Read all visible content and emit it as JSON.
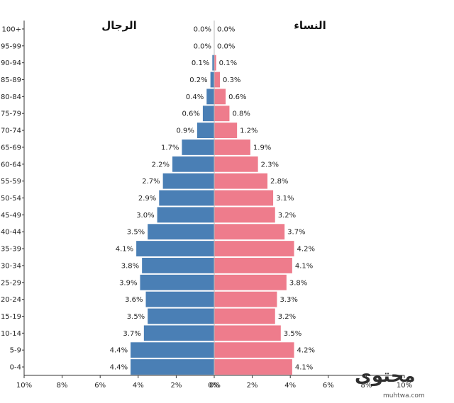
{
  "chart_data": {
    "type": "bar",
    "orientation": "horizontal",
    "layout": "population-pyramid",
    "title_left": "الرجال",
    "title_right": "النساء",
    "categories": [
      "100+",
      "95-99",
      "90-94",
      "85-89",
      "80-84",
      "75-79",
      "70-74",
      "65-69",
      "60-64",
      "55-59",
      "50-54",
      "45-49",
      "40-44",
      "35-39",
      "30-34",
      "25-29",
      "20-24",
      "15-19",
      "10-14",
      "5-9",
      "0-4"
    ],
    "series": [
      {
        "name": "الرجال",
        "side": "left",
        "color": "#4a7fb5",
        "values": [
          0.0,
          0.0,
          0.1,
          0.2,
          0.4,
          0.6,
          0.9,
          1.7,
          2.2,
          2.7,
          2.9,
          3.0,
          3.5,
          4.1,
          3.8,
          3.9,
          3.6,
          3.5,
          3.7,
          4.4,
          4.4
        ],
        "labels": [
          "0.0%",
          "0.0%",
          "0.1%",
          "0.2%",
          "0.4%",
          "0.6%",
          "0.9%",
          "1.7%",
          "2.2%",
          "2.7%",
          "2.9%",
          "3.0%",
          "3.5%",
          "4.1%",
          "3.8%",
          "3.9%",
          "3.6%",
          "3.5%",
          "3.7%",
          "4.4%",
          "4.4%"
        ]
      },
      {
        "name": "النساء",
        "side": "right",
        "color": "#ee7c8c",
        "values": [
          0.0,
          0.0,
          0.1,
          0.3,
          0.6,
          0.8,
          1.2,
          1.9,
          2.3,
          2.8,
          3.1,
          3.2,
          3.7,
          4.2,
          4.1,
          3.8,
          3.3,
          3.2,
          3.5,
          4.2,
          4.1
        ],
        "labels": [
          "0.0%",
          "0.0%",
          "0.1%",
          "0.3%",
          "0.6%",
          "0.8%",
          "1.2%",
          "1.9%",
          "2.3%",
          "2.8%",
          "3.1%",
          "3.2%",
          "3.7%",
          "4.2%",
          "4.1%",
          "3.8%",
          "3.3%",
          "3.2%",
          "3.5%",
          "4.2%",
          "4.1%"
        ]
      }
    ],
    "x_ticks": [
      "10%",
      "8%",
      "6%",
      "4%",
      "2%",
      "0%",
      "0%",
      "2%",
      "4%",
      "6%",
      "8%",
      "10%"
    ],
    "xlim": [
      -10,
      10
    ],
    "grid": false
  },
  "watermark": {
    "word": "محتوى",
    "url": "muhtwa.com"
  }
}
